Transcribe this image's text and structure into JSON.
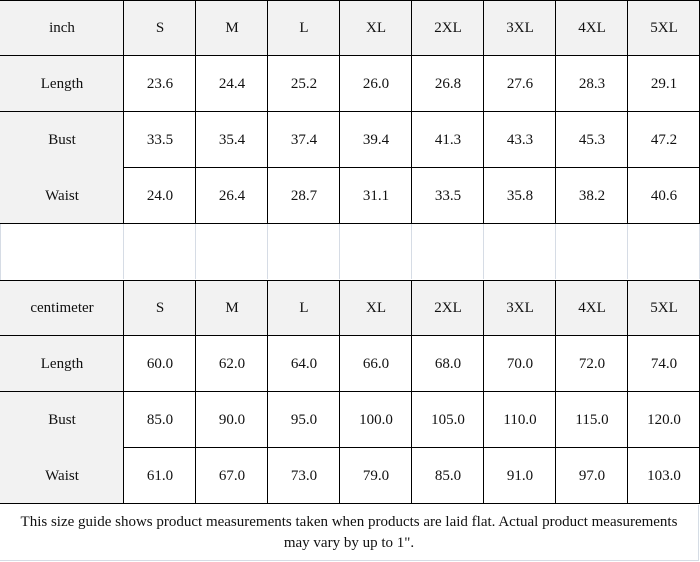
{
  "tables": [
    {
      "unit": "inch",
      "sizes": [
        "S",
        "M",
        "L",
        "XL",
        "2XL",
        "3XL",
        "4XL",
        "5XL"
      ],
      "rows": [
        {
          "label": "Length",
          "values": [
            "23.6",
            "24.4",
            "25.2",
            "26.0",
            "26.8",
            "27.6",
            "28.3",
            "29.1"
          ]
        },
        {
          "label": "Bust",
          "values": [
            "33.5",
            "35.4",
            "37.4",
            "39.4",
            "41.3",
            "43.3",
            "45.3",
            "47.2"
          ]
        },
        {
          "label": "Waist",
          "values": [
            "24.0",
            "26.4",
            "28.7",
            "31.1",
            "33.5",
            "35.8",
            "38.2",
            "40.6"
          ]
        }
      ]
    },
    {
      "unit": "centimeter",
      "sizes": [
        "S",
        "M",
        "L",
        "XL",
        "2XL",
        "3XL",
        "4XL",
        "5XL"
      ],
      "rows": [
        {
          "label": "Length",
          "values": [
            "60.0",
            "62.0",
            "64.0",
            "66.0",
            "68.0",
            "70.0",
            "72.0",
            "74.0"
          ]
        },
        {
          "label": "Bust",
          "values": [
            "85.0",
            "90.0",
            "95.0",
            "100.0",
            "105.0",
            "110.0",
            "115.0",
            "120.0"
          ]
        },
        {
          "label": "Waist",
          "values": [
            "61.0",
            "67.0",
            "73.0",
            "79.0",
            "85.0",
            "91.0",
            "97.0",
            "103.0"
          ]
        }
      ]
    }
  ],
  "note": "This size guide shows product measurements taken when products are laid flat. Actual product measurements may vary by up to 1\"."
}
